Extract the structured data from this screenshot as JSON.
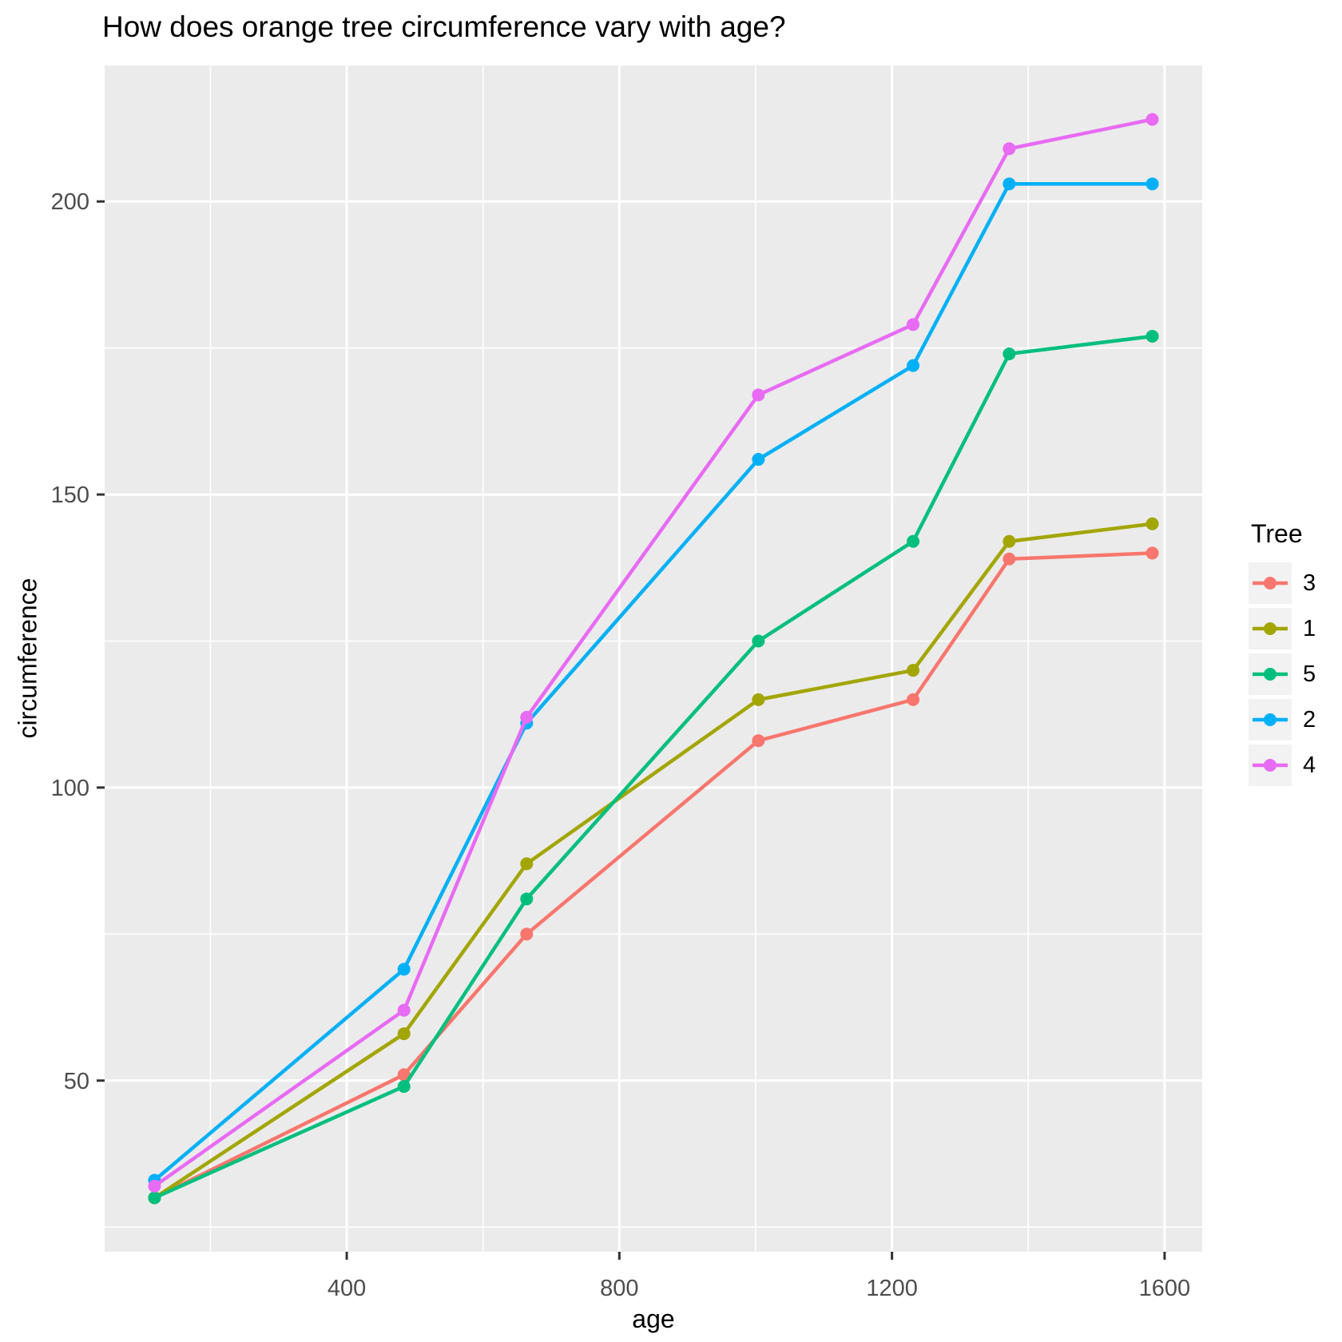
{
  "chart_data": {
    "type": "line",
    "title": "How does orange tree circumference vary with age?",
    "xlabel": "age",
    "ylabel": "circumference",
    "legend_title": "Tree",
    "legend_position": "right",
    "grid": true,
    "x": [
      118,
      484,
      664,
      1004,
      1231,
      1372,
      1582
    ],
    "series": [
      {
        "name": "3",
        "color": "#F8766D",
        "values": [
          30,
          51,
          75,
          108,
          115,
          139,
          140
        ]
      },
      {
        "name": "1",
        "color": "#A3A500",
        "values": [
          30,
          58,
          87,
          115,
          120,
          142,
          145
        ]
      },
      {
        "name": "5",
        "color": "#00BF7D",
        "values": [
          30,
          49,
          81,
          125,
          142,
          174,
          177
        ]
      },
      {
        "name": "2",
        "color": "#00B0F6",
        "values": [
          33,
          69,
          111,
          156,
          172,
          203,
          203
        ]
      },
      {
        "name": "4",
        "color": "#E76BF3",
        "values": [
          32,
          62,
          112,
          167,
          179,
          209,
          214
        ]
      }
    ],
    "x_ticks": [
      400,
      800,
      1200,
      1600
    ],
    "x_minor_ticks": [
      200,
      600,
      1000,
      1400
    ],
    "y_ticks": [
      50,
      100,
      150,
      200
    ],
    "y_minor_ticks": [
      25,
      75,
      125,
      175
    ],
    "xlim": [
      44.8,
      1655.2
    ],
    "ylim": [
      20.8,
      223.2
    ],
    "colors": {
      "panel_background": "#EBEBEB",
      "grid_line": "#FFFFFF",
      "legend_key_background": "#F2F2F2",
      "tick_mark": "#333333",
      "tick_label": "#4D4D4D",
      "title_text": "#000000"
    }
  }
}
